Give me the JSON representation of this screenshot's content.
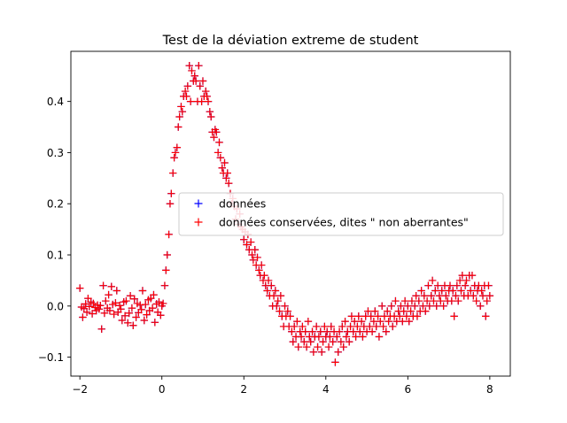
{
  "chart_data": {
    "type": "scatter",
    "title": "Test de la déviation extreme de student",
    "xlabel": "",
    "ylabel": "",
    "xlim": [
      -2.22,
      8.5
    ],
    "ylim": [
      -0.137,
      0.498
    ],
    "x_ticks": [
      -2,
      0,
      2,
      4,
      6,
      8
    ],
    "y_ticks": [
      -0.1,
      0.0,
      0.1,
      0.2,
      0.3,
      0.4
    ],
    "grid": false,
    "legend_position": "center-right",
    "marker": "plus",
    "series": [
      {
        "name": "données",
        "color": "#0000ff",
        "points": [
          [
            -2.0,
            0.035
          ],
          [
            -1.96,
            -0.002
          ],
          [
            -1.93,
            -0.022
          ],
          [
            -1.9,
            -0.005
          ],
          [
            -1.86,
            0.004
          ],
          [
            -1.83,
            -0.012
          ],
          [
            -1.8,
            0.015
          ],
          [
            -1.77,
            -0.001
          ],
          [
            -1.73,
            0.008
          ],
          [
            -1.7,
            -0.015
          ],
          [
            -1.67,
            0.005
          ],
          [
            -1.63,
            -0.003
          ],
          [
            -1.6,
            -0.009
          ],
          [
            -1.57,
            0.002
          ],
          [
            -1.53,
            -0.006
          ],
          [
            -1.5,
            0.001
          ],
          [
            -1.47,
            -0.045
          ],
          [
            -1.43,
            0.04
          ],
          [
            -1.4,
            -0.014
          ],
          [
            -1.37,
            0.01
          ],
          [
            -1.33,
            -0.004
          ],
          [
            -1.3,
            0.022
          ],
          [
            -1.27,
            -0.009
          ],
          [
            -1.23,
            0.038
          ],
          [
            -1.2,
            0.003
          ],
          [
            -1.17,
            -0.016
          ],
          [
            -1.13,
            0.006
          ],
          [
            -1.1,
            0.03
          ],
          [
            -1.07,
            -0.012
          ],
          [
            -1.03,
            0.001
          ],
          [
            -1.0,
            -0.006
          ],
          [
            -0.97,
            -0.028
          ],
          [
            -0.93,
            0.008
          ],
          [
            -0.9,
            -0.019
          ],
          [
            -0.87,
            0.01
          ],
          [
            -0.83,
            -0.033
          ],
          [
            -0.8,
            -0.014
          ],
          [
            -0.77,
            0.02
          ],
          [
            -0.73,
            -0.004
          ],
          [
            -0.7,
            -0.038
          ],
          [
            -0.67,
            0.014
          ],
          [
            -0.63,
            -0.022
          ],
          [
            -0.6,
            0.005
          ],
          [
            -0.57,
            -0.013
          ],
          [
            -0.53,
            0.002
          ],
          [
            -0.5,
            -0.007
          ],
          [
            -0.47,
            0.03
          ],
          [
            -0.43,
            -0.028
          ],
          [
            -0.4,
            0.003
          ],
          [
            -0.37,
            -0.017
          ],
          [
            -0.33,
            0.012
          ],
          [
            -0.3,
            -0.009
          ],
          [
            -0.27,
            0.015
          ],
          [
            -0.23,
            -0.004
          ],
          [
            -0.2,
            0.022
          ],
          [
            -0.17,
            -0.032
          ],
          [
            -0.13,
            0.004
          ],
          [
            -0.1,
            -0.012
          ],
          [
            -0.07,
            0.008
          ],
          [
            -0.03,
            -0.018
          ],
          [
            0.0,
            0.0
          ],
          [
            0.03,
            0.005
          ],
          [
            0.07,
            0.04
          ],
          [
            0.1,
            0.07
          ],
          [
            0.13,
            0.1
          ],
          [
            0.17,
            0.14
          ],
          [
            0.2,
            0.2
          ],
          [
            0.23,
            0.22
          ],
          [
            0.27,
            0.26
          ],
          [
            0.3,
            0.29
          ],
          [
            0.33,
            0.3
          ],
          [
            0.37,
            0.31
          ],
          [
            0.4,
            0.35
          ],
          [
            0.43,
            0.37
          ],
          [
            0.47,
            0.39
          ],
          [
            0.5,
            0.38
          ],
          [
            0.53,
            0.41
          ],
          [
            0.57,
            0.42
          ],
          [
            0.6,
            0.41
          ],
          [
            0.63,
            0.43
          ],
          [
            0.67,
            0.47
          ],
          [
            0.7,
            0.4
          ],
          [
            0.73,
            0.46
          ],
          [
            0.77,
            0.44
          ],
          [
            0.8,
            0.45
          ],
          [
            0.83,
            0.44
          ],
          [
            0.87,
            0.4
          ],
          [
            0.9,
            0.47
          ],
          [
            0.93,
            0.43
          ],
          [
            0.97,
            0.4
          ],
          [
            1.0,
            0.44
          ],
          [
            1.03,
            0.41
          ],
          [
            1.07,
            0.42
          ],
          [
            1.1,
            0.41
          ],
          [
            1.13,
            0.4
          ],
          [
            1.17,
            0.38
          ],
          [
            1.2,
            0.37
          ],
          [
            1.23,
            0.34
          ],
          [
            1.27,
            0.33
          ],
          [
            1.3,
            0.345
          ],
          [
            1.33,
            0.34
          ],
          [
            1.37,
            0.3
          ],
          [
            1.4,
            0.32
          ],
          [
            1.43,
            0.29
          ],
          [
            1.47,
            0.27
          ],
          [
            1.5,
            0.26
          ],
          [
            1.53,
            0.28
          ],
          [
            1.57,
            0.25
          ],
          [
            1.6,
            0.26
          ],
          [
            1.63,
            0.24
          ],
          [
            1.67,
            0.22
          ],
          [
            1.7,
            0.2
          ],
          [
            1.73,
            0.21
          ],
          [
            1.77,
            0.195
          ],
          [
            1.8,
            0.17
          ],
          [
            1.83,
            0.19
          ],
          [
            1.87,
            0.16
          ],
          [
            1.9,
            0.18
          ],
          [
            1.93,
            0.155
          ],
          [
            1.97,
            0.15
          ],
          [
            2.0,
            0.13
          ],
          [
            2.03,
            0.145
          ],
          [
            2.07,
            0.12
          ],
          [
            2.1,
            0.14
          ],
          [
            2.13,
            0.11
          ],
          [
            2.17,
            0.125
          ],
          [
            2.2,
            0.1
          ],
          [
            2.23,
            0.09
          ],
          [
            2.27,
            0.11
          ],
          [
            2.3,
            0.08
          ],
          [
            2.33,
            0.095
          ],
          [
            2.37,
            0.07
          ],
          [
            2.4,
            0.06
          ],
          [
            2.43,
            0.08
          ],
          [
            2.47,
            0.05
          ],
          [
            2.5,
            0.06
          ],
          [
            2.53,
            0.04
          ],
          [
            2.57,
            0.03
          ],
          [
            2.6,
            0.05
          ],
          [
            2.63,
            0.02
          ],
          [
            2.67,
            0.04
          ],
          [
            2.7,
            0.0
          ],
          [
            2.73,
            0.02
          ],
          [
            2.77,
            0.03
          ],
          [
            2.8,
            0.0
          ],
          [
            2.83,
            0.01
          ],
          [
            2.87,
            -0.01
          ],
          [
            2.9,
            0.02
          ],
          [
            2.93,
            -0.02
          ],
          [
            2.97,
            -0.04
          ],
          [
            3.0,
            0.0
          ],
          [
            3.03,
            -0.02
          ],
          [
            3.07,
            -0.01
          ],
          [
            3.1,
            -0.04
          ],
          [
            3.13,
            -0.02
          ],
          [
            3.17,
            -0.05
          ],
          [
            3.2,
            -0.07
          ],
          [
            3.23,
            -0.04
          ],
          [
            3.27,
            -0.06
          ],
          [
            3.3,
            -0.03
          ],
          [
            3.33,
            -0.08
          ],
          [
            3.37,
            -0.05
          ],
          [
            3.4,
            -0.06
          ],
          [
            3.43,
            -0.04
          ],
          [
            3.47,
            -0.07
          ],
          [
            3.5,
            -0.05
          ],
          [
            3.53,
            -0.08
          ],
          [
            3.57,
            -0.03
          ],
          [
            3.6,
            -0.06
          ],
          [
            3.63,
            -0.07
          ],
          [
            3.67,
            -0.05
          ],
          [
            3.7,
            -0.09
          ],
          [
            3.73,
            -0.06
          ],
          [
            3.77,
            -0.04
          ],
          [
            3.8,
            -0.08
          ],
          [
            3.83,
            -0.06
          ],
          [
            3.87,
            -0.05
          ],
          [
            3.9,
            -0.09
          ],
          [
            3.93,
            -0.07
          ],
          [
            3.97,
            -0.04
          ],
          [
            4.0,
            -0.06
          ],
          [
            4.03,
            -0.05
          ],
          [
            4.07,
            -0.08
          ],
          [
            4.1,
            -0.06
          ],
          [
            4.13,
            -0.04
          ],
          [
            4.17,
            -0.07
          ],
          [
            4.2,
            -0.05
          ],
          [
            4.23,
            -0.11
          ],
          [
            4.27,
            -0.06
          ],
          [
            4.3,
            -0.09
          ],
          [
            4.33,
            -0.05
          ],
          [
            4.37,
            -0.07
          ],
          [
            4.4,
            -0.04
          ],
          [
            4.43,
            -0.08
          ],
          [
            4.47,
            -0.03
          ],
          [
            4.5,
            -0.06
          ],
          [
            4.53,
            -0.05
          ],
          [
            4.57,
            -0.07
          ],
          [
            4.6,
            -0.04
          ],
          [
            4.63,
            -0.02
          ],
          [
            4.67,
            -0.05
          ],
          [
            4.7,
            -0.03
          ],
          [
            4.73,
            -0.06
          ],
          [
            4.77,
            -0.04
          ],
          [
            4.8,
            -0.02
          ],
          [
            4.83,
            -0.05
          ],
          [
            4.87,
            -0.03
          ],
          [
            4.9,
            -0.06
          ],
          [
            4.93,
            -0.04
          ],
          [
            4.97,
            -0.02
          ],
          [
            5.0,
            -0.05
          ],
          [
            5.03,
            -0.01
          ],
          [
            5.07,
            -0.04
          ],
          [
            5.1,
            -0.02
          ],
          [
            5.13,
            -0.05
          ],
          [
            5.17,
            -0.03
          ],
          [
            5.2,
            -0.01
          ],
          [
            5.23,
            -0.04
          ],
          [
            5.27,
            -0.02
          ],
          [
            5.3,
            -0.06
          ],
          [
            5.33,
            -0.03
          ],
          [
            5.37,
            0.0
          ],
          [
            5.4,
            -0.04
          ],
          [
            5.43,
            -0.02
          ],
          [
            5.47,
            -0.05
          ],
          [
            5.5,
            -0.01
          ],
          [
            5.53,
            -0.03
          ],
          [
            5.57,
            -0.02
          ],
          [
            5.6,
            0.0
          ],
          [
            5.63,
            -0.04
          ],
          [
            5.67,
            -0.02
          ],
          [
            5.7,
            0.01
          ],
          [
            5.73,
            -0.03
          ],
          [
            5.77,
            -0.01
          ],
          [
            5.8,
            -0.02
          ],
          [
            5.83,
            0.0
          ],
          [
            5.87,
            -0.03
          ],
          [
            5.9,
            -0.01
          ],
          [
            5.93,
            0.01
          ],
          [
            5.97,
            -0.02
          ],
          [
            6.0,
            0.0
          ],
          [
            6.03,
            -0.03
          ],
          [
            6.07,
            -0.01
          ],
          [
            6.1,
            0.01
          ],
          [
            6.13,
            -0.02
          ],
          [
            6.17,
            0.0
          ],
          [
            6.2,
            0.02
          ],
          [
            6.23,
            -0.02
          ],
          [
            6.27,
            0.01
          ],
          [
            6.3,
            -0.01
          ],
          [
            6.33,
            0.03
          ],
          [
            6.37,
            0.0
          ],
          [
            6.4,
            0.02
          ],
          [
            6.43,
            -0.01
          ],
          [
            6.47,
            0.01
          ],
          [
            6.5,
            0.04
          ],
          [
            6.53,
            0.0
          ],
          [
            6.57,
            0.02
          ],
          [
            6.6,
            0.05
          ],
          [
            6.63,
            0.01
          ],
          [
            6.67,
            0.03
          ],
          [
            6.7,
            0.0
          ],
          [
            6.73,
            0.04
          ],
          [
            6.77,
            0.02
          ],
          [
            6.8,
            0.01
          ],
          [
            6.83,
            0.03
          ],
          [
            6.87,
            0.0
          ],
          [
            6.9,
            0.04
          ],
          [
            6.93,
            0.02
          ],
          [
            6.97,
            0.01
          ],
          [
            7.0,
            0.03
          ],
          [
            7.03,
            0.04
          ],
          [
            7.07,
            0.01
          ],
          [
            7.1,
            0.03
          ],
          [
            7.13,
            -0.02
          ],
          [
            7.17,
            0.02
          ],
          [
            7.2,
            0.04
          ],
          [
            7.23,
            0.01
          ],
          [
            7.27,
            0.05
          ],
          [
            7.3,
            0.03
          ],
          [
            7.33,
            0.06
          ],
          [
            7.37,
            0.02
          ],
          [
            7.4,
            0.04
          ],
          [
            7.43,
            0.05
          ],
          [
            7.47,
            0.02
          ],
          [
            7.5,
            0.06
          ],
          [
            7.53,
            0.03
          ],
          [
            7.57,
            0.06
          ],
          [
            7.6,
            0.02
          ],
          [
            7.63,
            0.04
          ],
          [
            7.67,
            0.01
          ],
          [
            7.7,
            0.03
          ],
          [
            7.73,
            0.04
          ],
          [
            7.77,
            0.0
          ],
          [
            7.8,
            0.03
          ],
          [
            7.83,
            0.02
          ],
          [
            7.87,
            0.04
          ],
          [
            7.9,
            -0.02
          ],
          [
            7.93,
            0.01
          ],
          [
            7.97,
            0.04
          ],
          [
            8.0,
            0.02
          ]
        ]
      },
      {
        "name": "données conservées, dites \" non aberrantes\"",
        "color": "#ff0000",
        "same_points_as": "données"
      }
    ]
  }
}
